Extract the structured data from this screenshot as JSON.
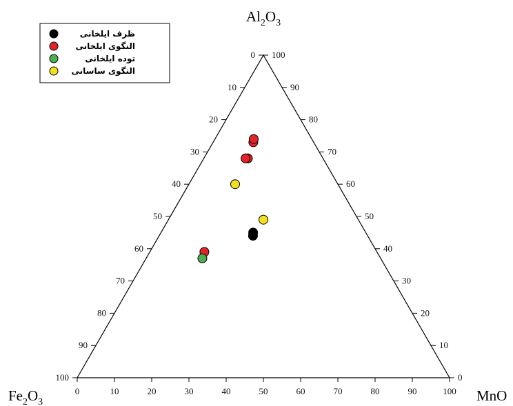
{
  "chart_data": {
    "type": "ternary-scatter",
    "corners": {
      "top": {
        "base": "Al",
        "sub1": "2",
        "mid": "O",
        "sub2": "3"
      },
      "left": {
        "base": "Fe",
        "sub1": "2",
        "mid": "O",
        "sub2": "3"
      },
      "right": {
        "base": "MnO",
        "sub1": "",
        "mid": "",
        "sub2": ""
      }
    },
    "ticks": [
      "0",
      "10",
      "20",
      "30",
      "40",
      "50",
      "60",
      "70",
      "80",
      "90",
      "100"
    ],
    "legend_position": "top-left",
    "series": [
      {
        "name": "ظرف ایلخانی",
        "color": "#000000",
        "points": [
          [
            55,
            0.45,
            0.5
          ],
          [
            56,
            0.45,
            0.5
          ]
        ]
      },
      {
        "name": "النگوی ایلخانی",
        "color": "#e3232a",
        "points": [
          [
            27,
            0.4,
            0.5
          ],
          [
            26,
            0.4,
            0.5
          ],
          [
            32,
            0.37,
            0.5
          ],
          [
            32,
            0.35,
            0.5
          ],
          [
            61,
            0.24,
            0.5
          ]
        ]
      },
      {
        "name": "توده ایلخانی",
        "color": "#4caf50",
        "points": [
          [
            63,
            0.24,
            0.5
          ]
        ]
      },
      {
        "name": "النگوی ساسانی",
        "color": "#f2e01f",
        "points": [
          [
            40,
            0.31,
            0.5
          ],
          [
            51,
            0.5,
            0.5
          ]
        ]
      }
    ]
  }
}
